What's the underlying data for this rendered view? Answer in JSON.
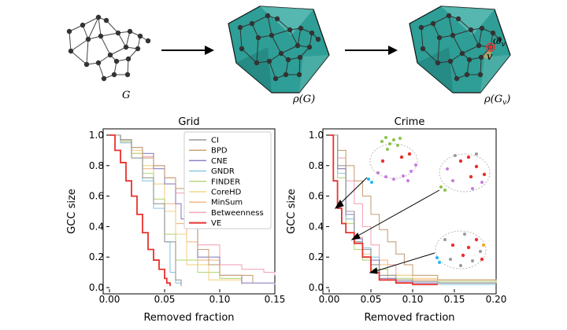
{
  "diagram": {
    "graph_label": "G",
    "hull_label": "ρ(G)",
    "hull_v_label": "ρ(G",
    "hull_v_sub": "v",
    "omega_label": "ω",
    "omega_sub": "v",
    "v_label": "v",
    "colors": {
      "hull": "#2e9e96",
      "edge": "#444444",
      "node": "#333333",
      "highlight": "#e8322e"
    }
  },
  "chart_data": [
    {
      "type": "line",
      "title": "Grid",
      "xlabel": "Removed fraction",
      "ylabel": "GCC size",
      "xlim": [
        0,
        0.15
      ],
      "ylim": [
        0,
        1.0
      ],
      "xticks": [
        "0.00",
        "0.05",
        "0.10",
        "0.15"
      ],
      "yticks": [
        "0.0",
        "0.2",
        "0.4",
        "0.6",
        "0.8",
        "1.0"
      ],
      "legend": "top-right",
      "series": [
        {
          "name": "CI",
          "color": "#999999",
          "x": [
            0,
            0.01,
            0.02,
            0.03,
            0.04,
            0.05,
            0.06,
            0.065
          ],
          "y": [
            1.0,
            0.97,
            0.85,
            0.72,
            0.55,
            0.3,
            0.05,
            0.01
          ]
        },
        {
          "name": "BPD",
          "color": "#c8a27a",
          "x": [
            0,
            0.01,
            0.02,
            0.03,
            0.04,
            0.05,
            0.06,
            0.07,
            0.08,
            0.09,
            0.1,
            0.13
          ],
          "y": [
            1.0,
            0.97,
            0.92,
            0.85,
            0.8,
            0.72,
            0.65,
            0.55,
            0.25,
            0.15,
            0.08,
            0.03
          ]
        },
        {
          "name": "CNE",
          "color": "#8b82c4",
          "x": [
            0,
            0.01,
            0.02,
            0.03,
            0.04,
            0.05,
            0.06,
            0.065,
            0.075,
            0.08,
            0.1,
            0.12,
            0.15
          ],
          "y": [
            1.0,
            0.97,
            0.92,
            0.88,
            0.78,
            0.68,
            0.55,
            0.45,
            0.42,
            0.2,
            0.08,
            0.03,
            0.02
          ]
        },
        {
          "name": "GNDR",
          "color": "#8ec6df",
          "x": [
            0,
            0.01,
            0.02,
            0.03,
            0.04,
            0.05,
            0.055,
            0.06,
            0.065
          ],
          "y": [
            1.0,
            0.95,
            0.85,
            0.7,
            0.52,
            0.3,
            0.1,
            0.03,
            0.01
          ]
        },
        {
          "name": "FINDER",
          "color": "#b7d87a",
          "x": [
            0,
            0.01,
            0.02,
            0.03,
            0.04,
            0.05,
            0.06,
            0.08,
            0.1,
            0.12
          ],
          "y": [
            1.0,
            0.96,
            0.88,
            0.75,
            0.58,
            0.35,
            0.18,
            0.1,
            0.06,
            0.02
          ]
        },
        {
          "name": "CoreHD",
          "color": "#f2d58a",
          "x": [
            0,
            0.01,
            0.02,
            0.03,
            0.04,
            0.05,
            0.06,
            0.07,
            0.09,
            0.12
          ],
          "y": [
            1.0,
            0.96,
            0.9,
            0.8,
            0.68,
            0.5,
            0.35,
            0.15,
            0.05,
            0.02
          ]
        },
        {
          "name": "MinSum",
          "color": "#f3b98a",
          "x": [
            0,
            0.01,
            0.02,
            0.03,
            0.04,
            0.05,
            0.06,
            0.07,
            0.08,
            0.1,
            0.12
          ],
          "y": [
            1.0,
            0.95,
            0.88,
            0.78,
            0.68,
            0.55,
            0.42,
            0.3,
            0.18,
            0.08,
            0.04
          ]
        },
        {
          "name": "Betweenness",
          "color": "#f4a6b8",
          "x": [
            0,
            0.01,
            0.02,
            0.03,
            0.04,
            0.05,
            0.06,
            0.07,
            0.08,
            0.1,
            0.12,
            0.14,
            0.15
          ],
          "y": [
            1.0,
            0.96,
            0.92,
            0.86,
            0.8,
            0.72,
            0.62,
            0.48,
            0.28,
            0.15,
            0.12,
            0.1,
            0.08
          ]
        },
        {
          "name": "VE",
          "color": "#e8322e",
          "x": [
            0,
            0.005,
            0.01,
            0.015,
            0.02,
            0.025,
            0.03,
            0.035,
            0.04,
            0.045,
            0.05,
            0.052,
            0.055
          ],
          "y": [
            1.0,
            0.9,
            0.82,
            0.7,
            0.6,
            0.48,
            0.36,
            0.25,
            0.18,
            0.12,
            0.06,
            0.03,
            0.01
          ]
        }
      ]
    },
    {
      "type": "line",
      "title": "Crime",
      "xlabel": "Removed fraction",
      "ylabel": "GCC size",
      "xlim": [
        0,
        0.2
      ],
      "ylim": [
        0,
        1.0
      ],
      "xticks": [
        "0.00",
        "0.05",
        "0.10",
        "0.15",
        "0.20"
      ],
      "yticks": [
        "0.0",
        "0.2",
        "0.4",
        "0.6",
        "0.8",
        "1.0"
      ],
      "legend": "none",
      "series": [
        {
          "name": "CI",
          "color": "#999999",
          "x": [
            0,
            0.01,
            0.02,
            0.03,
            0.04,
            0.05,
            0.06,
            0.08,
            0.1,
            0.13,
            0.2
          ],
          "y": [
            1.0,
            0.8,
            0.5,
            0.3,
            0.25,
            0.15,
            0.08,
            0.05,
            0.04,
            0.03,
            0.03
          ]
        },
        {
          "name": "BPD",
          "color": "#c8a27a",
          "x": [
            0,
            0.01,
            0.02,
            0.03,
            0.04,
            0.05,
            0.06,
            0.07,
            0.08,
            0.09,
            0.1,
            0.13,
            0.2
          ],
          "y": [
            1.0,
            0.9,
            0.8,
            0.7,
            0.6,
            0.48,
            0.38,
            0.3,
            0.22,
            0.15,
            0.08,
            0.05,
            0.04
          ]
        },
        {
          "name": "CNE",
          "color": "#8b82c4",
          "x": [
            0,
            0.01,
            0.02,
            0.03,
            0.04,
            0.05,
            0.06,
            0.08,
            0.1,
            0.2
          ],
          "y": [
            1.0,
            0.78,
            0.48,
            0.32,
            0.25,
            0.18,
            0.06,
            0.04,
            0.03,
            0.03
          ]
        },
        {
          "name": "GNDR",
          "color": "#8ec6df",
          "x": [
            0,
            0.01,
            0.02,
            0.03,
            0.04,
            0.05,
            0.06,
            0.08,
            0.1,
            0.2
          ],
          "y": [
            1.0,
            0.75,
            0.45,
            0.3,
            0.26,
            0.2,
            0.05,
            0.03,
            0.02,
            0.02
          ]
        },
        {
          "name": "FINDER",
          "color": "#b7d87a",
          "x": [
            0,
            0.01,
            0.02,
            0.03,
            0.04,
            0.05,
            0.07,
            0.1,
            0.2
          ],
          "y": [
            1.0,
            0.72,
            0.42,
            0.25,
            0.18,
            0.12,
            0.06,
            0.04,
            0.03
          ]
        },
        {
          "name": "CoreHD",
          "color": "#f2d58a",
          "x": [
            0,
            0.01,
            0.02,
            0.03,
            0.04,
            0.05,
            0.07,
            0.1,
            0.13,
            0.2
          ],
          "y": [
            1.0,
            0.75,
            0.45,
            0.3,
            0.22,
            0.15,
            0.08,
            0.06,
            0.05,
            0.05
          ]
        },
        {
          "name": "MinSum",
          "color": "#f3b98a",
          "x": [
            0,
            0.01,
            0.02,
            0.03,
            0.04,
            0.05,
            0.07,
            0.1,
            0.2
          ],
          "y": [
            1.0,
            0.78,
            0.5,
            0.33,
            0.25,
            0.18,
            0.08,
            0.05,
            0.04
          ]
        },
        {
          "name": "Betweenness",
          "color": "#f4a6b8",
          "x": [
            0,
            0.01,
            0.02,
            0.03,
            0.04,
            0.05,
            0.06,
            0.08,
            0.1,
            0.2
          ],
          "y": [
            1.0,
            0.85,
            0.7,
            0.55,
            0.4,
            0.28,
            0.15,
            0.08,
            0.05,
            0.04
          ]
        },
        {
          "name": "VE",
          "color": "#e8322e",
          "x": [
            0,
            0.005,
            0.01,
            0.015,
            0.02,
            0.03,
            0.04,
            0.05,
            0.06,
            0.08,
            0.1,
            0.13
          ],
          "y": [
            1.0,
            0.7,
            0.52,
            0.42,
            0.36,
            0.29,
            0.2,
            0.1,
            0.05,
            0.03,
            0.02,
            0.02
          ]
        }
      ]
    }
  ]
}
